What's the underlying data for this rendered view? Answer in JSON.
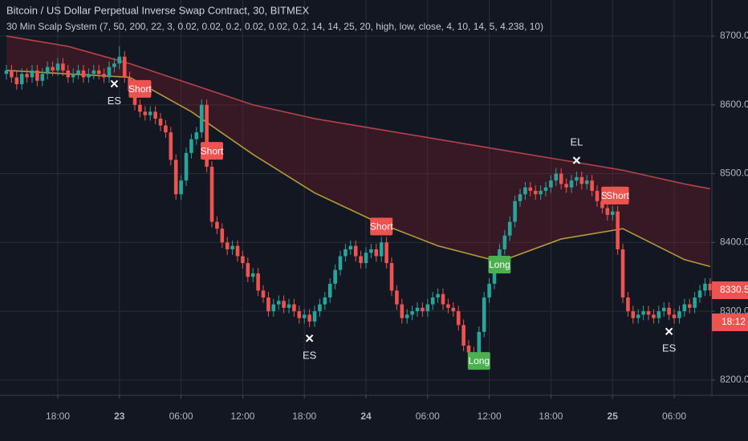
{
  "chart_data": {
    "type": "candlestick",
    "title": "Bitcoin / US Dollar Perpetual Inverse Swap Contract, 30, BITMEX",
    "indicator": "30 Min Scalp System (7, 50, 200, 22, 3, 0.02, 0.02, 0.2, 0.02, 0.02, 0.2, 14, 14, 25, 20, high, low, close, 4, 10, 14, 5, 4.238, 10)",
    "countdown": "18:12",
    "up_color": "#26a69a",
    "down_color": "#ef5350",
    "open": [
      8645,
      8650,
      8640,
      8630,
      8645,
      8640,
      8650,
      8635,
      8645,
      8655,
      8650,
      8660,
      8650,
      8640,
      8645,
      8650,
      8640,
      8645,
      8650,
      8645,
      8640,
      8655,
      8660,
      8670,
      8640,
      8620,
      8600,
      8590,
      8585,
      8590,
      8580,
      8570,
      8560,
      8520,
      8470,
      8490,
      8530,
      8550,
      8560,
      8600,
      8510,
      8430,
      8420,
      8400,
      8390,
      8395,
      8380,
      8370,
      8350,
      8355,
      8330,
      8320,
      8300,
      8310,
      8315,
      8305,
      8310,
      8300,
      8290,
      8295,
      8285,
      8300,
      8310,
      8320,
      8340,
      8360,
      8380,
      8390,
      8395,
      8380,
      8370,
      8385,
      8390,
      8380,
      8400,
      8370,
      8330,
      8310,
      8290,
      8295,
      8300,
      8305,
      8300,
      8310,
      8320,
      8325,
      8310,
      8305,
      8300,
      8280,
      8250,
      8240,
      8230,
      8270,
      8320,
      8340,
      8370,
      8390,
      8410,
      8430,
      8460,
      8470,
      8480,
      8475,
      8470,
      8475,
      8480,
      8490,
      8500,
      8485,
      8480,
      8490,
      8495,
      8485,
      8490,
      8475,
      8460,
      8450,
      8440,
      8445,
      8390,
      8320,
      8300,
      8290,
      8295,
      8300,
      8295,
      8290,
      8300,
      8305,
      8295,
      8290,
      8300,
      8310,
      8305,
      8320,
      8330,
      8340
    ],
    "high": [
      8658,
      8658,
      8648,
      8653,
      8653,
      8658,
      8658,
      8653,
      8663,
      8663,
      8668,
      8668,
      8658,
      8653,
      8658,
      8658,
      8653,
      8658,
      8658,
      8653,
      8663,
      8668,
      8685,
      8678,
      8648,
      8628,
      8608,
      8598,
      8598,
      8598,
      8588,
      8578,
      8568,
      8528,
      8498,
      8538,
      8558,
      8568,
      8608,
      8608,
      8518,
      8438,
      8428,
      8408,
      8403,
      8403,
      8388,
      8378,
      8363,
      8363,
      8338,
      8328,
      8318,
      8323,
      8323,
      8318,
      8318,
      8308,
      8303,
      8303,
      8308,
      8318,
      8328,
      8348,
      8368,
      8388,
      8398,
      8403,
      8403,
      8388,
      8393,
      8398,
      8398,
      8408,
      8408,
      8378,
      8338,
      8318,
      8303,
      8308,
      8313,
      8313,
      8318,
      8328,
      8333,
      8333,
      8318,
      8313,
      8308,
      8288,
      8258,
      8248,
      8278,
      8328,
      8348,
      8378,
      8398,
      8418,
      8438,
      8468,
      8478,
      8488,
      8488,
      8483,
      8483,
      8488,
      8498,
      8508,
      8508,
      8493,
      8498,
      8503,
      8503,
      8498,
      8498,
      8483,
      8468,
      8458,
      8453,
      8453,
      8398,
      8328,
      8308,
      8303,
      8308,
      8308,
      8303,
      8308,
      8313,
      8313,
      8303,
      8308,
      8318,
      8318,
      8328,
      8338,
      8348,
      8348
    ],
    "low": [
      8637,
      8632,
      8622,
      8622,
      8632,
      8632,
      8627,
      8627,
      8637,
      8642,
      8642,
      8642,
      8632,
      8632,
      8637,
      8632,
      8632,
      8637,
      8637,
      8632,
      8632,
      8647,
      8652,
      8632,
      8612,
      8592,
      8582,
      8577,
      8577,
      8572,
      8562,
      8552,
      8512,
      8462,
      8462,
      8482,
      8522,
      8542,
      8552,
      8502,
      8422,
      8412,
      8392,
      8382,
      8382,
      8372,
      8362,
      8342,
      8342,
      8322,
      8312,
      8292,
      8292,
      8302,
      8297,
      8297,
      8292,
      8282,
      8282,
      8277,
      8277,
      8292,
      8302,
      8312,
      8332,
      8352,
      8372,
      8382,
      8372,
      8362,
      8362,
      8377,
      8372,
      8372,
      8362,
      8322,
      8302,
      8282,
      8282,
      8287,
      8292,
      8292,
      8292,
      8302,
      8312,
      8302,
      8297,
      8292,
      8272,
      8242,
      8232,
      8222,
      8222,
      8262,
      8312,
      8332,
      8362,
      8382,
      8402,
      8422,
      8452,
      8462,
      8467,
      8462,
      8462,
      8467,
      8472,
      8482,
      8477,
      8472,
      8472,
      8482,
      8477,
      8477,
      8467,
      8452,
      8442,
      8432,
      8432,
      8382,
      8312,
      8292,
      8282,
      8282,
      8287,
      8287,
      8282,
      8282,
      8292,
      8287,
      8282,
      8282,
      8292,
      8297,
      8297,
      8312,
      8322,
      8322
    ],
    "close": [
      8650,
      8640,
      8630,
      8645,
      8640,
      8650,
      8635,
      8645,
      8655,
      8650,
      8660,
      8650,
      8640,
      8645,
      8650,
      8640,
      8645,
      8650,
      8645,
      8640,
      8655,
      8660,
      8670,
      8640,
      8620,
      8600,
      8590,
      8585,
      8590,
      8580,
      8570,
      8560,
      8520,
      8470,
      8490,
      8530,
      8550,
      8560,
      8600,
      8510,
      8430,
      8420,
      8400,
      8390,
      8395,
      8380,
      8370,
      8350,
      8355,
      8330,
      8320,
      8300,
      8310,
      8315,
      8305,
      8310,
      8300,
      8290,
      8295,
      8285,
      8300,
      8310,
      8320,
      8340,
      8360,
      8380,
      8390,
      8395,
      8380,
      8370,
      8385,
      8390,
      8380,
      8400,
      8370,
      8330,
      8310,
      8290,
      8295,
      8300,
      8305,
      8300,
      8310,
      8320,
      8325,
      8310,
      8305,
      8300,
      8280,
      8250,
      8240,
      8230,
      8270,
      8320,
      8340,
      8370,
      8390,
      8410,
      8430,
      8460,
      8470,
      8480,
      8475,
      8470,
      8475,
      8480,
      8490,
      8500,
      8485,
      8480,
      8490,
      8495,
      8485,
      8490,
      8475,
      8460,
      8450,
      8440,
      8445,
      8390,
      8320,
      8300,
      8290,
      8295,
      8300,
      8295,
      8290,
      8300,
      8305,
      8295,
      8290,
      8300,
      8310,
      8305,
      8320,
      8330,
      8340,
      8330.5
    ],
    "lines": [
      {
        "color": "#b3434a",
        "x": [
          0,
          12,
          24,
          36,
          48,
          60,
          72,
          84,
          96,
          108,
          120,
          132,
          137
        ],
        "values": [
          8700,
          8685,
          8660,
          8630,
          8600,
          8580,
          8565,
          8550,
          8535,
          8520,
          8505,
          8485,
          8478
        ]
      },
      {
        "color": "#b59a3a",
        "x": [
          0,
          12,
          24,
          36,
          48,
          60,
          72,
          84,
          96,
          108,
          120,
          132,
          137
        ],
        "values": [
          8650,
          8645,
          8640,
          8590,
          8528,
          8472,
          8430,
          8395,
          8372,
          8405,
          8420,
          8375,
          8365
        ]
      }
    ],
    "fill_color": "rgba(120,30,40,0.35)",
    "signals": [
      {
        "label": "ES",
        "x": 21
      },
      {
        "label": "Short",
        "x": 26
      },
      {
        "label": "Short",
        "x": 40
      },
      {
        "label": "ES",
        "x": 59
      },
      {
        "label": "Short",
        "x": 73
      },
      {
        "label": "Long",
        "x": 92
      },
      {
        "label": "Long",
        "x": 96
      },
      {
        "label": "EL",
        "x": 111
      },
      {
        "label": "Short",
        "x": 118
      },
      {
        "label": "Short",
        "x": 119
      },
      {
        "label": "ES",
        "x": 129
      }
    ],
    "ylim": [
      8177.8,
      8752.4
    ],
    "yticks": [
      {
        "value": 8200,
        "label": "8200.0"
      },
      {
        "value": 8300,
        "label": "8300.0"
      },
      {
        "value": 8400,
        "label": "8400.0"
      },
      {
        "value": 8500,
        "label": "8500.0"
      },
      {
        "value": 8600,
        "label": "8600.0"
      },
      {
        "value": 8700,
        "label": "8700.0"
      }
    ],
    "xlim": [
      -1.25,
      137.34
    ],
    "xticks": [
      {
        "value": 10,
        "label": "18:00"
      },
      {
        "value": 22,
        "label": "23"
      },
      {
        "value": 34,
        "label": "06:00"
      },
      {
        "value": 46,
        "label": "12:00"
      },
      {
        "value": 58,
        "label": "18:00"
      },
      {
        "value": 70,
        "label": "24"
      },
      {
        "value": 82,
        "label": "06:00"
      },
      {
        "value": 94,
        "label": "12:00"
      },
      {
        "value": 106,
        "label": "18:00"
      },
      {
        "value": 118,
        "label": "25"
      },
      {
        "value": 130,
        "label": "06:00"
      }
    ],
    "grid": true
  }
}
